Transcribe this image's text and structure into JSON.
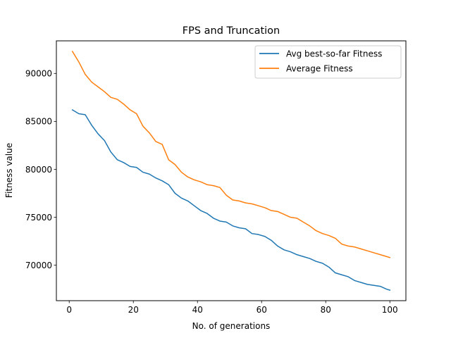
{
  "chart_data": {
    "type": "line",
    "title": "FPS and Truncation",
    "xlabel": "No. of generations",
    "ylabel": "Fitness value",
    "xlim": [
      -4,
      105
    ],
    "ylim": [
      66300,
      93400
    ],
    "xticks": [
      0,
      20,
      40,
      60,
      80,
      100
    ],
    "yticks": [
      70000,
      75000,
      80000,
      85000,
      90000
    ],
    "legend_position": "top-right",
    "grid": false,
    "series": [
      {
        "name": "Avg best-so-far Fitness",
        "color": "#1f77b4",
        "x": [
          1,
          3,
          5,
          7,
          9,
          11,
          13,
          15,
          17,
          19,
          21,
          23,
          25,
          27,
          29,
          31,
          33,
          35,
          37,
          39,
          41,
          43,
          45,
          47,
          49,
          51,
          53,
          55,
          57,
          59,
          61,
          63,
          65,
          67,
          69,
          71,
          73,
          75,
          77,
          79,
          81,
          83,
          85,
          87,
          89,
          91,
          93,
          95,
          97,
          99,
          100
        ],
        "y": [
          86200,
          85800,
          85700,
          84600,
          83700,
          83000,
          81800,
          81000,
          80700,
          80300,
          80200,
          79700,
          79500,
          79100,
          78800,
          78400,
          77500,
          77000,
          76700,
          76200,
          75700,
          75400,
          74900,
          74600,
          74500,
          74100,
          73900,
          73800,
          73300,
          73200,
          73000,
          72600,
          72000,
          71600,
          71400,
          71100,
          70900,
          70700,
          70400,
          70200,
          69800,
          69200,
          69000,
          68800,
          68400,
          68200,
          68000,
          67900,
          67800,
          67500,
          67400
        ]
      },
      {
        "name": "Average Fitness",
        "color": "#ff7f0e",
        "x": [
          1,
          3,
          5,
          7,
          9,
          11,
          13,
          15,
          17,
          19,
          21,
          23,
          25,
          27,
          29,
          31,
          33,
          35,
          37,
          39,
          41,
          43,
          45,
          47,
          49,
          51,
          53,
          55,
          57,
          59,
          61,
          63,
          65,
          67,
          69,
          71,
          73,
          75,
          77,
          79,
          81,
          83,
          85,
          87,
          89,
          91,
          93,
          95,
          97,
          99,
          100
        ],
        "y": [
          92300,
          91200,
          89900,
          89100,
          88600,
          88100,
          87500,
          87300,
          86800,
          86200,
          85800,
          84500,
          83800,
          82900,
          82600,
          81000,
          80500,
          79700,
          79200,
          78900,
          78700,
          78400,
          78300,
          78100,
          77300,
          76800,
          76700,
          76500,
          76400,
          76200,
          76000,
          75700,
          75600,
          75300,
          75000,
          74900,
          74500,
          74100,
          73600,
          73300,
          73100,
          72800,
          72200,
          72000,
          71900,
          71700,
          71500,
          71300,
          71100,
          70900,
          70800
        ]
      }
    ]
  }
}
